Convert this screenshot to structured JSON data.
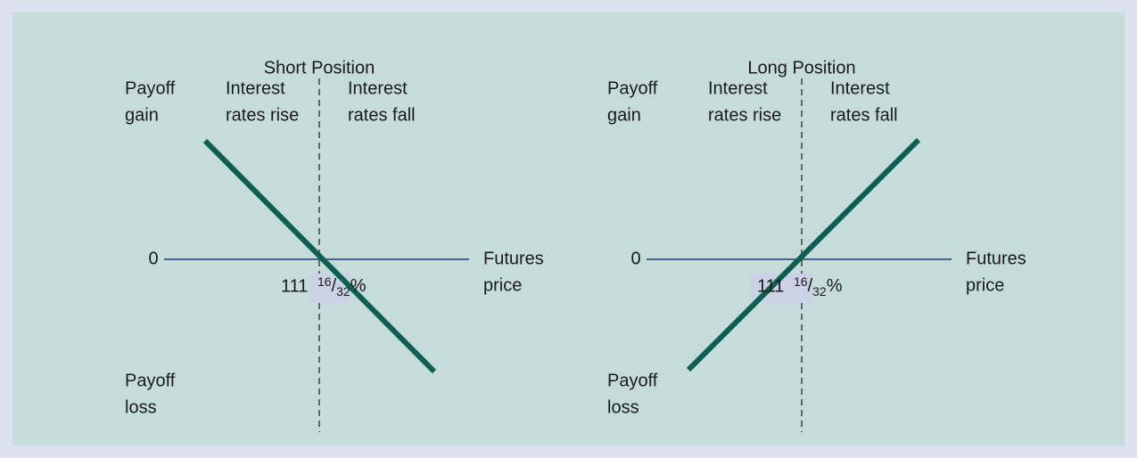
{
  "panels": [
    {
      "title": "Short Position",
      "gain_label": [
        "Payoff",
        "gain"
      ],
      "loss_label": [
        "Payoff",
        "loss"
      ],
      "left_region": [
        "Interest",
        "rates rise"
      ],
      "right_region": [
        "Interest",
        "rates fall"
      ],
      "zero": "0",
      "x_axis": [
        "Futures",
        "price"
      ],
      "price": {
        "whole": "111",
        "numerator": "16",
        "separator": "/",
        "denominator": "32",
        "unit": "%"
      }
    },
    {
      "title": "Long Position",
      "gain_label": [
        "Payoff",
        "gain"
      ],
      "loss_label": [
        "Payoff",
        "loss"
      ],
      "left_region": [
        "Interest",
        "rates rise"
      ],
      "right_region": [
        "Interest",
        "rates fall"
      ],
      "zero": "0",
      "x_axis": [
        "Futures",
        "price"
      ],
      "price": {
        "whole": "111",
        "numerator": "16",
        "separator": "/",
        "denominator": "32",
        "unit": "%"
      }
    }
  ]
}
